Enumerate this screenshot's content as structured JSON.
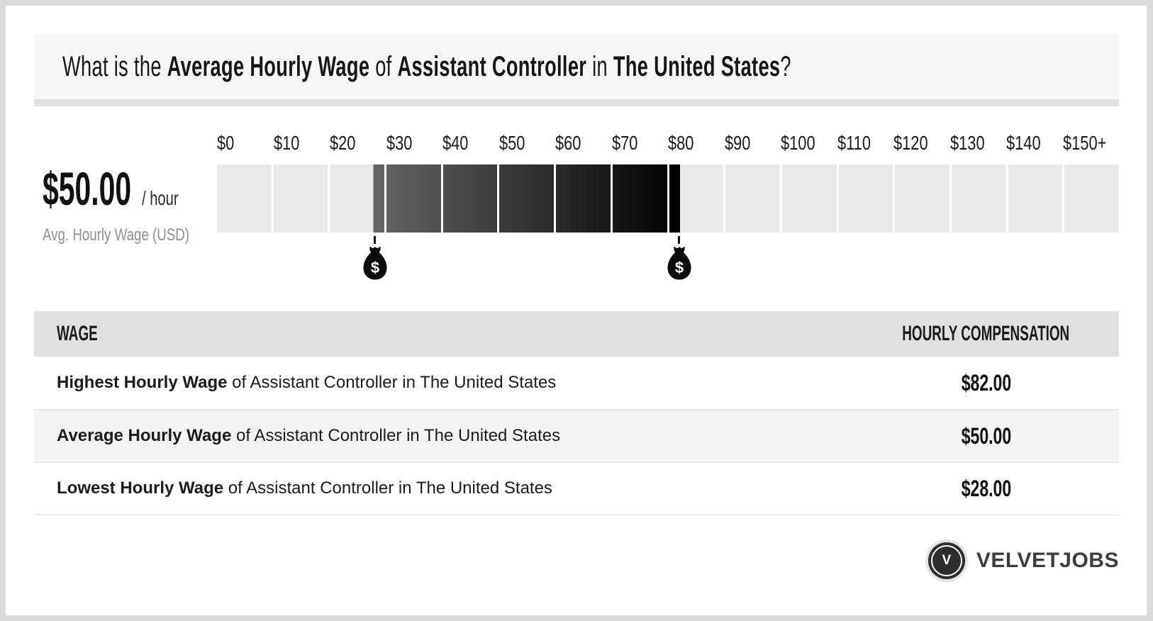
{
  "title": {
    "parts": [
      {
        "text": "What is the ",
        "bold": false
      },
      {
        "text": "Average Hourly Wage",
        "bold": true
      },
      {
        "text": " of ",
        "bold": false
      },
      {
        "text": "Assistant Controller",
        "bold": true
      },
      {
        "text": " in ",
        "bold": false
      },
      {
        "text": "The United States",
        "bold": true
      },
      {
        "text": "?",
        "bold": false
      }
    ]
  },
  "gauge": {
    "amount": "$50.00",
    "per": "/ hour",
    "caption": "Avg. Hourly Wage (USD)",
    "axis_labels": [
      "$0",
      "$10",
      "$20",
      "$30",
      "$40",
      "$50",
      "$60",
      "$70",
      "$80",
      "$90",
      "$100",
      "$110",
      "$120",
      "$130",
      "$140",
      "$150+"
    ],
    "axis_min": 0,
    "axis_max": 160,
    "step": 10,
    "range_low": 28,
    "range_high": 82,
    "cell_light_color": "#e9e9e9",
    "gradient_start_gray": 102
  },
  "table": {
    "headers": {
      "wage": "WAGE",
      "compensation": "HOURLY COMPENSATION"
    },
    "rows": [
      {
        "label_bold": "Highest Hourly Wage",
        "label_rest": " of Assistant Controller in The United States",
        "value": "$82.00"
      },
      {
        "label_bold": "Average Hourly Wage",
        "label_rest": " of Assistant Controller in The United States",
        "value": "$50.00"
      },
      {
        "label_bold": "Lowest Hourly Wage",
        "label_rest": " of Assistant Controller in The United States",
        "value": "$28.00"
      }
    ]
  },
  "footer": {
    "logo_letter": "V",
    "logo_text": "VELVETJOBS"
  },
  "chart_data": {
    "type": "bar",
    "subtype": "range-gauge",
    "title": "What is the Average Hourly Wage of Assistant Controller in The United States?",
    "categories": [
      "$0",
      "$10",
      "$20",
      "$30",
      "$40",
      "$50",
      "$60",
      "$70",
      "$80",
      "$90",
      "$100",
      "$110",
      "$120",
      "$130",
      "$140",
      "$150+"
    ],
    "xlim": [
      0,
      160
    ],
    "series": [
      {
        "name": "Hourly wage range of Assistant Controller in The United States (USD/hour)",
        "low": 28,
        "average": 50,
        "high": 82
      }
    ],
    "annotations": [
      "$50.00 / hour",
      "Avg. Hourly Wage (USD)"
    ],
    "markers": [
      {
        "label": "money-bag",
        "value": 28
      },
      {
        "label": "money-bag",
        "value": 82
      }
    ],
    "legend": "none",
    "grid": "off",
    "table": {
      "columns": [
        "WAGE",
        "HOURLY COMPENSATION"
      ],
      "rows": [
        [
          "Highest Hourly Wage of Assistant Controller in The United States",
          "$82.00"
        ],
        [
          "Average Hourly Wage of Assistant Controller in The United States",
          "$50.00"
        ],
        [
          "Lowest Hourly Wage of Assistant Controller in The United States",
          "$28.00"
        ]
      ]
    }
  }
}
